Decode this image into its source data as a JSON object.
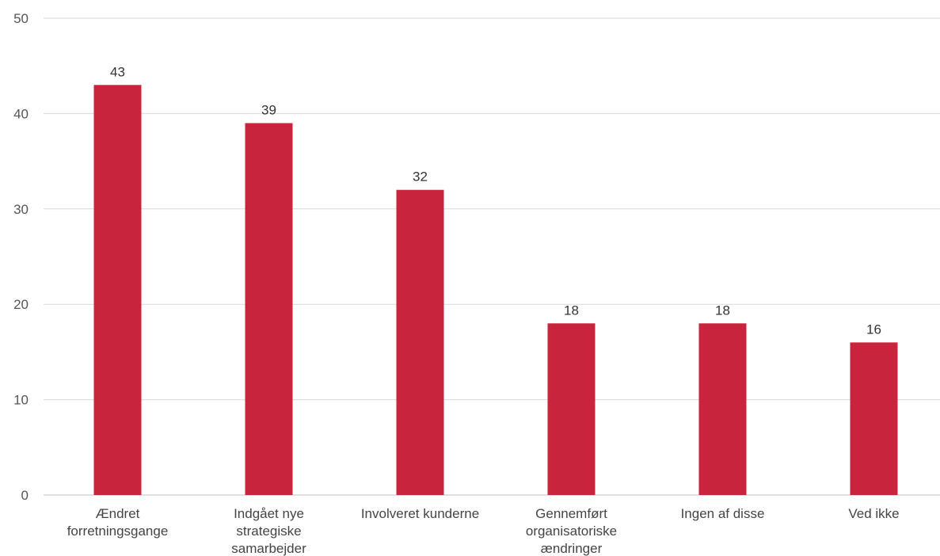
{
  "chart_data": {
    "type": "bar",
    "title": "",
    "xlabel": "",
    "ylabel": "",
    "ylim": [
      0,
      50
    ],
    "yticks": [
      0,
      10,
      20,
      30,
      40,
      50
    ],
    "grid": true,
    "legend": "none",
    "bar_color": "#c8243e",
    "categories": [
      [
        "Ændret",
        "forretningsgange"
      ],
      [
        "Indgået nye",
        "strategiske",
        "samarbejder"
      ],
      [
        "Involveret kunderne"
      ],
      [
        "Gennemført",
        "organisatoriske",
        "ændringer"
      ],
      [
        "Ingen af disse"
      ],
      [
        "Ved ikke"
      ]
    ],
    "values": [
      43,
      39,
      32,
      18,
      18,
      16
    ]
  }
}
